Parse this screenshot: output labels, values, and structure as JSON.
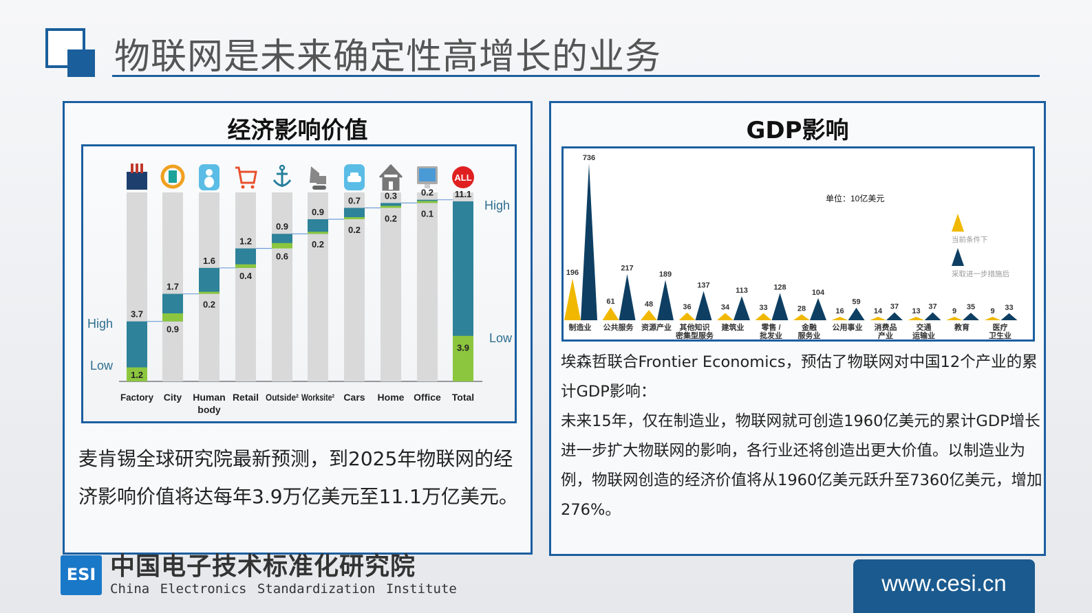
{
  "header": {
    "title": "物联网是未来确定性高增长的业务"
  },
  "left_panel": {
    "title": "经济影响价值",
    "text": "麦肯锡全球研究院最新预测，到2025年物联网的经济影响价值将达每年3.9万亿美元至11.1万亿美元。"
  },
  "right_panel": {
    "title": "GDP影响",
    "paragraphs": [
      "埃森哲联合Frontier Economics，预估了物联网对中国12个产业的累计GDP影响：",
      "未来15年，仅在制造业，物联网就可创造1960亿美元的累计GDP增长",
      "进一步扩大物联网的影响，各行业还将创造出更大价值。以制造业为例，物联网创造的经济价值将从1960亿美元跃升至7360亿美元，增加276%。"
    ]
  },
  "chart_data": [
    {
      "type": "bar",
      "subtype": "waterfall",
      "categories": [
        "Factory",
        "City",
        "Human body",
        "Retail",
        "Outside²",
        "Worksite²",
        "Cars",
        "Home",
        "Office",
        "Total"
      ],
      "icons": [
        "factory-icon",
        "city-icon",
        "human-body-icon",
        "shopping-cart-icon",
        "anchor-icon",
        "excavator-icon",
        "car-icon",
        "house-icon",
        "monitor-icon",
        "all-icon"
      ],
      "series": [
        {
          "name": "High",
          "values": [
            3.7,
            1.7,
            1.6,
            1.2,
            0.9,
            0.9,
            0.7,
            0.3,
            0.2,
            11.1
          ]
        },
        {
          "name": "Low",
          "values": [
            1.2,
            0.9,
            0.2,
            0.4,
            0.6,
            0.2,
            0.2,
            0.2,
            0.1,
            3.9
          ]
        }
      ],
      "legend_left": {
        "high": "High",
        "low": "Low"
      },
      "legend_right": {
        "high": "High",
        "low": "Low"
      },
      "colors": {
        "high": "#2e8299",
        "low": "#8cc63f",
        "track": "#d9d9d9",
        "connector": "#6f9fd8"
      }
    },
    {
      "type": "bar",
      "subtype": "triangle-pairs",
      "unit": "单位：10亿美元",
      "categories": [
        [
          "制造业"
        ],
        [
          "公共服务"
        ],
        [
          "资源产业"
        ],
        [
          "其他知识",
          "密集型服务"
        ],
        [
          "建筑业"
        ],
        [
          "零售 /",
          "批发业"
        ],
        [
          "金融",
          "服务业"
        ],
        [
          "公用事业"
        ],
        [
          "消费品",
          "产业"
        ],
        [
          "交通",
          "运输业"
        ],
        [
          "教育"
        ],
        [
          "医疗",
          "卫生业"
        ]
      ],
      "series": [
        {
          "name": "当前条件下",
          "color": "#f0b800",
          "values": [
            196,
            61,
            48,
            36,
            34,
            33,
            28,
            16,
            14,
            13,
            9,
            9
          ]
        },
        {
          "name": "采取进一步措施后",
          "color": "#0e3f63",
          "values": [
            736,
            217,
            189,
            137,
            113,
            128,
            104,
            59,
            37,
            37,
            35,
            33
          ]
        }
      ],
      "legend_placement": "right"
    }
  ],
  "footer": {
    "logo_text": "ESI",
    "org_cn": "中国电子技术标准化研究院",
    "org_en": "China Electronics Standardization Institute",
    "website": "www.cesi.cn"
  }
}
